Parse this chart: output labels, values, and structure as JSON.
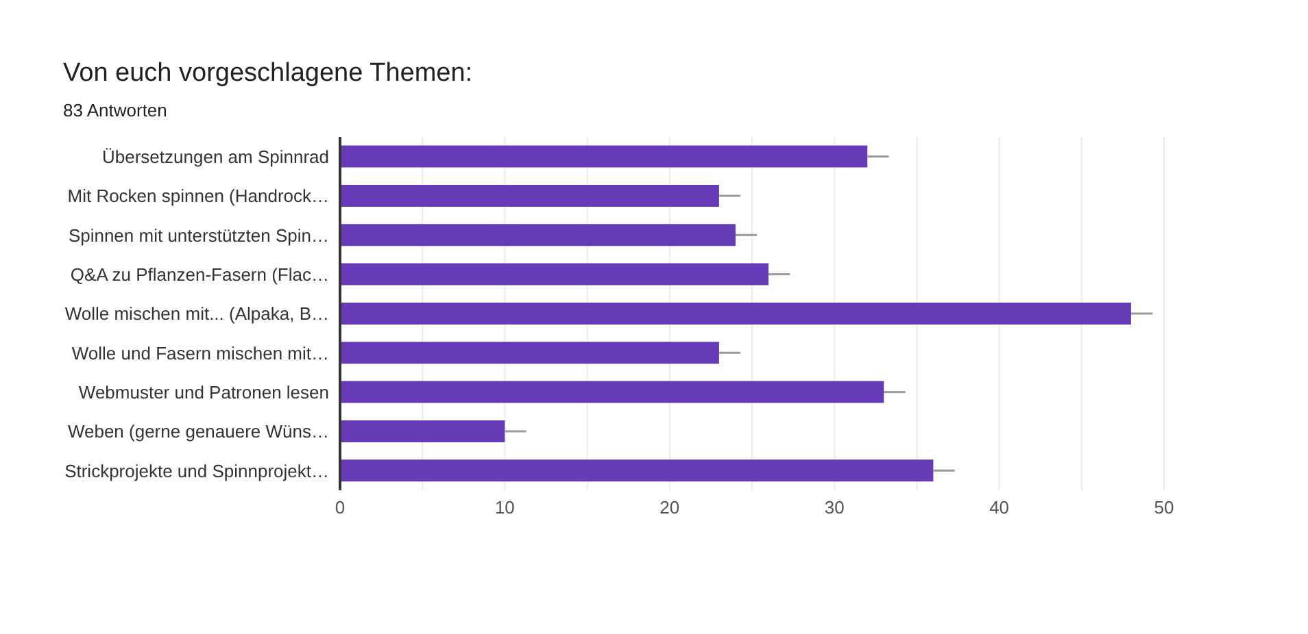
{
  "chart_data": {
    "type": "bar",
    "orientation": "horizontal",
    "title": "Von euch vorgeschlagene Themen:",
    "subtitle": "83 Antworten",
    "categories": [
      "Übersetzungen am Spinnrad",
      "Mit Rocken spinnen (Handrock…",
      "Spinnen mit unterstützten Spin…",
      "Q&A zu Pflanzen-Fasern (Flac…",
      "Wolle mischen mit... (Alpaka, B…",
      "Wolle und Fasern mischen mit…",
      "Webmuster und Patronen lesen",
      "Weben (gerne genauere Wüns…",
      "Strickprojekte und Spinnprojekt…"
    ],
    "values": [
      32,
      23,
      24,
      26,
      48,
      23,
      33,
      10,
      36
    ],
    "errors": [
      [
        32,
        33.3
      ],
      [
        23,
        24.3
      ],
      [
        24,
        25.3
      ],
      [
        26,
        27.3
      ],
      [
        48,
        49.3
      ],
      [
        23,
        24.3
      ],
      [
        33,
        34.3
      ],
      [
        10,
        11.3
      ],
      [
        36,
        37.3
      ]
    ],
    "color": "#673ab7",
    "xlim": [
      0,
      50
    ],
    "xticks": [
      0,
      {
        "value": 5,
        "label": null
      },
      10,
      {
        "value": 15,
        "label": null
      },
      20,
      {
        "value": 25,
        "label": null
      },
      30,
      {
        "value": 35,
        "label": null
      },
      40,
      {
        "value": 45,
        "label": null
      },
      50
    ],
    "grid": "x",
    "legend": false
  }
}
